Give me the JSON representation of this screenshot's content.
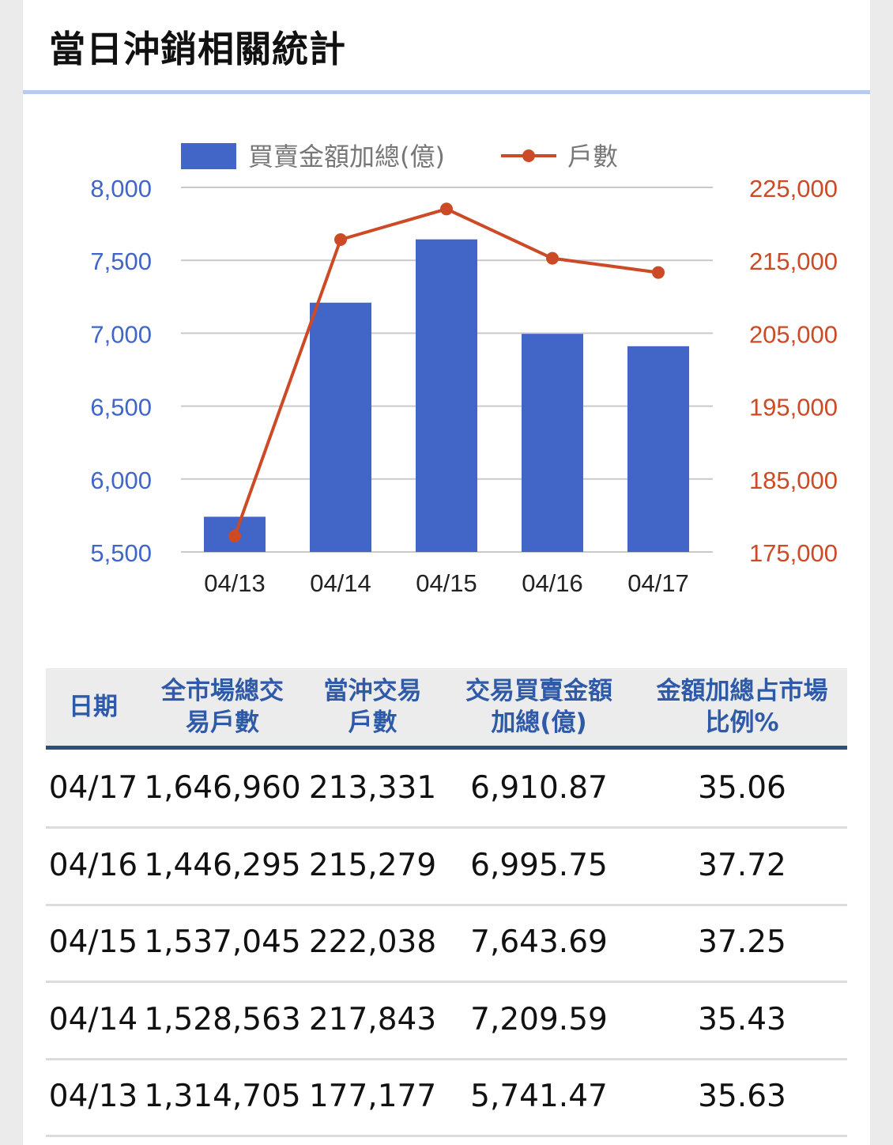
{
  "title": "當日沖銷相關統計",
  "chart_data": {
    "type": "bar",
    "categories": [
      "04/13",
      "04/14",
      "04/15",
      "04/16",
      "04/17"
    ],
    "series": [
      {
        "name": "買賣金額加總(億)",
        "kind": "bar",
        "axis": "left",
        "color": "#4166c8",
        "values": [
          5741.47,
          7209.59,
          7643.69,
          6995.75,
          6910.87
        ]
      },
      {
        "name": "戶數",
        "kind": "line",
        "axis": "right",
        "color": "#cc4a25",
        "values": [
          177177,
          217843,
          222038,
          215279,
          213331
        ]
      }
    ],
    "left_axis": {
      "ticks": [
        "8,000",
        "7,500",
        "7,000",
        "6,500",
        "6,000",
        "5,500"
      ],
      "range": [
        5500,
        8000
      ],
      "color": "#4166c8"
    },
    "right_axis": {
      "ticks": [
        "225,000",
        "215,000",
        "205,000",
        "195,000",
        "185,000",
        "175,000"
      ],
      "range": [
        175000,
        225000
      ],
      "color": "#cc4a25"
    },
    "legend_position": "top",
    "grid": true
  },
  "table": {
    "headers": [
      [
        "日期"
      ],
      [
        "全市場總交",
        "易戶數"
      ],
      [
        "當沖交易",
        "戶數"
      ],
      [
        "交易買賣金額",
        "加總(億)"
      ],
      [
        "金額加總占市場",
        "比例%"
      ]
    ],
    "rows": [
      [
        "04/17",
        "1,646,960",
        "213,331",
        "6,910.87",
        "35.06"
      ],
      [
        "04/16",
        "1,446,295",
        "215,279",
        "6,995.75",
        "37.72"
      ],
      [
        "04/15",
        "1,537,045",
        "222,038",
        "7,643.69",
        "37.25"
      ],
      [
        "04/14",
        "1,528,563",
        "217,843",
        "7,209.59",
        "35.43"
      ],
      [
        "04/13",
        "1,314,705",
        "177,177",
        "5,741.47",
        "35.63"
      ]
    ]
  }
}
